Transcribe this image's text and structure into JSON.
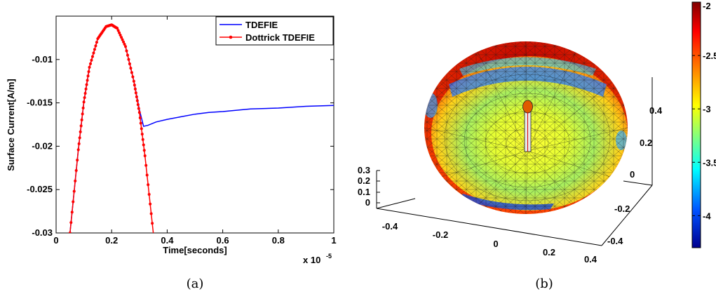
{
  "chart_data": [
    {
      "type": "line",
      "xlabel": "Time[seconds]",
      "ylabel": "Surface Current[A/m]",
      "x_multiplier_label": "x 10",
      "x_multiplier_exponent": "-5",
      "xlim": [
        0,
        1
      ],
      "ylim": [
        -0.03,
        -0.005
      ],
      "x_ticks": [
        0,
        0.2,
        0.4,
        0.6,
        0.8,
        1
      ],
      "x_tick_labels": [
        "0",
        "0.2",
        "0.4",
        "0.6",
        "0.8",
        "1"
      ],
      "y_ticks": [
        -0.03,
        -0.025,
        -0.02,
        -0.015,
        -0.01
      ],
      "y_tick_labels": [
        "-0.03",
        "-0.025",
        "-0.02",
        "-0.015",
        "-0.01"
      ],
      "grid": false,
      "legend_position": "top-right",
      "series": [
        {
          "name": "TDEFIE",
          "color": "#0000ff",
          "marker": "none",
          "x": [
            0.05,
            0.08,
            0.1,
            0.12,
            0.15,
            0.18,
            0.2,
            0.22,
            0.25,
            0.28,
            0.3,
            0.315,
            0.33,
            0.36,
            0.4,
            0.45,
            0.5,
            0.55,
            0.6,
            0.7,
            0.8,
            0.9,
            1.0
          ],
          "y": [
            -0.03,
            -0.0204,
            -0.0149,
            -0.0109,
            -0.0076,
            -0.0062,
            -0.006,
            -0.0064,
            -0.0085,
            -0.0125,
            -0.0158,
            -0.0177,
            -0.0176,
            -0.0172,
            -0.0169,
            -0.0166,
            -0.0163,
            -0.0161,
            -0.016,
            -0.0157,
            -0.0156,
            -0.0154,
            -0.0153
          ]
        },
        {
          "name": "Dottrick TDEFIE",
          "color": "#ff0000",
          "marker": "dot",
          "x": [
            0.05,
            0.08,
            0.1,
            0.12,
            0.15,
            0.18,
            0.2,
            0.22,
            0.25,
            0.28,
            0.3,
            0.32,
            0.35
          ],
          "y": [
            -0.03,
            -0.0204,
            -0.0149,
            -0.0109,
            -0.0076,
            -0.0062,
            -0.006,
            -0.0064,
            -0.0085,
            -0.0125,
            -0.0161,
            -0.0211,
            -0.03
          ]
        }
      ],
      "caption": "(a)"
    },
    {
      "type": "heatmap",
      "description_kind": "3d-mesh-surface",
      "x_tick_labels": [
        "-0.4",
        "-0.2",
        "0",
        "0.2",
        "0.4"
      ],
      "y_tick_labels": [
        "-0.4",
        "-0.2",
        "0",
        "0.2",
        "0.4"
      ],
      "z_tick_labels": [
        "0",
        "0.1",
        "0.2",
        "0.3"
      ],
      "colorbar_range": [
        -4.3,
        -2
      ],
      "colorbar_tick_labels": [
        "-2",
        "-2.5",
        "-3",
        "-3.5",
        "-4"
      ],
      "colormap": [
        "#800000",
        "#ff0000",
        "#ffff00",
        "#00ffff",
        "#0000ff",
        "#00008f"
      ],
      "caption": "(b)"
    }
  ]
}
